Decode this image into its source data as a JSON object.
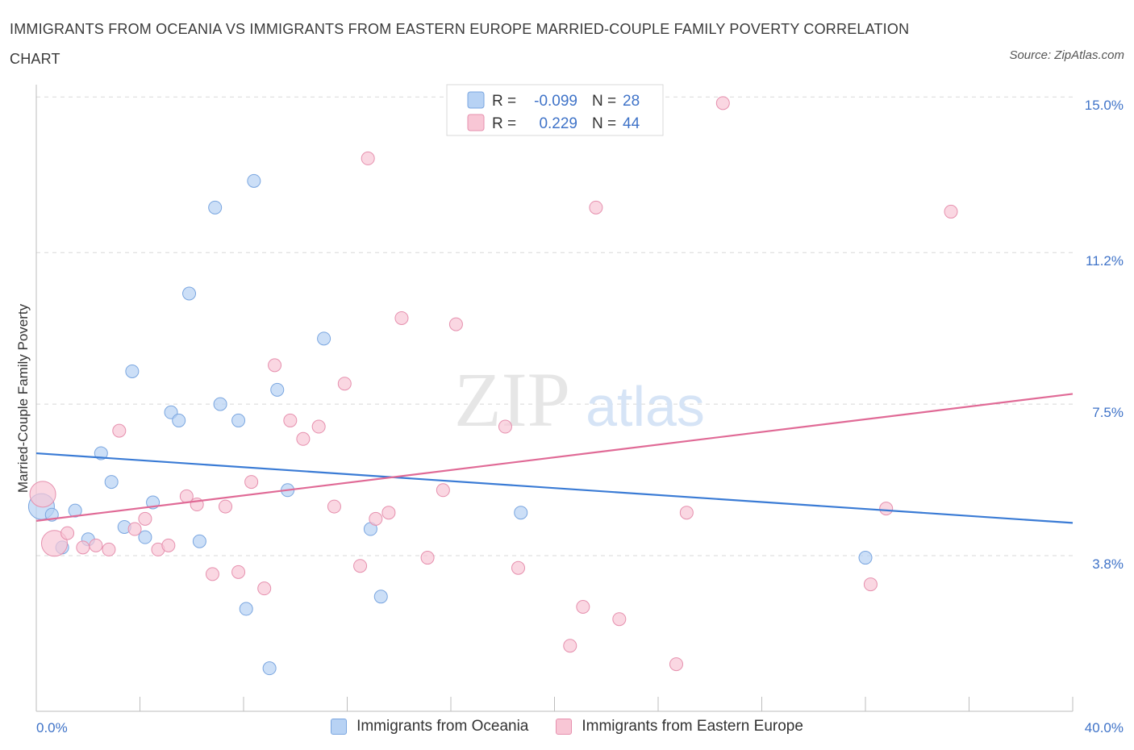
{
  "title": "IMMIGRANTS FROM OCEANIA VS IMMIGRANTS FROM EASTERN EUROPE MARRIED-COUPLE FAMILY POVERTY CORRELATION CHART",
  "source": "Source: ZipAtlas.com",
  "watermark": {
    "zip": "ZIP",
    "atlas": "atlas"
  },
  "colors": {
    "blue_fill": "#b7d2f4",
    "blue_stroke": "#7aa6e0",
    "blue_line": "#3a7bd5",
    "pink_fill": "#f8c6d5",
    "pink_stroke": "#e690ae",
    "pink_line": "#e06a96",
    "tick_text": "#3f73c8",
    "grid": "#d8d8d8"
  },
  "legend": {
    "rows": [
      {
        "r_label": "R =",
        "r_value": "-0.099",
        "n_label": "N =",
        "n_value": "28"
      },
      {
        "r_label": "R =",
        "r_value": "0.229",
        "n_label": "N =",
        "n_value": "44"
      }
    ]
  },
  "chart_data": {
    "type": "scatter",
    "title": "IMMIGRANTS FROM OCEANIA VS IMMIGRANTS FROM EASTERN EUROPE MARRIED-COUPLE FAMILY POVERTY CORRELATION CHART",
    "xlabel": "",
    "ylabel": "Married-Couple Family Poverty",
    "xlim": [
      0,
      40
    ],
    "ylim": [
      0,
      15.3
    ],
    "x_tick_labels": [
      {
        "value": 0,
        "label": "0.0%"
      },
      {
        "value": 40,
        "label": "40.0%"
      }
    ],
    "y_ticks": [
      {
        "value": 3.8,
        "label": "3.8%"
      },
      {
        "value": 7.5,
        "label": "7.5%"
      },
      {
        "value": 11.2,
        "label": "11.2%"
      },
      {
        "value": 15.0,
        "label": "15.0%"
      }
    ],
    "series": [
      {
        "name": "Immigrants from Oceania",
        "R": -0.099,
        "N": 28,
        "trend": {
          "x": [
            0,
            40
          ],
          "y": [
            6.3,
            4.6
          ]
        },
        "points": [
          {
            "x": 0.2,
            "y": 5.0,
            "big": true
          },
          {
            "x": 0.6,
            "y": 4.8
          },
          {
            "x": 1.0,
            "y": 4.0
          },
          {
            "x": 1.5,
            "y": 4.9
          },
          {
            "x": 2.0,
            "y": 4.2
          },
          {
            "x": 2.5,
            "y": 6.3
          },
          {
            "x": 2.9,
            "y": 5.6
          },
          {
            "x": 3.4,
            "y": 4.5
          },
          {
            "x": 3.7,
            "y": 8.3
          },
          {
            "x": 4.2,
            "y": 4.25
          },
          {
            "x": 4.5,
            "y": 5.1
          },
          {
            "x": 5.2,
            "y": 7.3
          },
          {
            "x": 5.5,
            "y": 7.1
          },
          {
            "x": 5.9,
            "y": 10.2
          },
          {
            "x": 6.3,
            "y": 4.15
          },
          {
            "x": 6.9,
            "y": 12.3
          },
          {
            "x": 7.1,
            "y": 7.5
          },
          {
            "x": 7.8,
            "y": 7.1
          },
          {
            "x": 8.1,
            "y": 2.5
          },
          {
            "x": 8.4,
            "y": 12.95
          },
          {
            "x": 9.0,
            "y": 1.05
          },
          {
            "x": 9.3,
            "y": 7.85
          },
          {
            "x": 9.7,
            "y": 5.4
          },
          {
            "x": 11.1,
            "y": 9.1
          },
          {
            "x": 12.9,
            "y": 4.45
          },
          {
            "x": 13.3,
            "y": 2.8
          },
          {
            "x": 18.7,
            "y": 4.85
          },
          {
            "x": 32.0,
            "y": 3.75
          }
        ]
      },
      {
        "name": "Immigrants from Eastern Europe",
        "R": 0.229,
        "N": 44,
        "trend": {
          "x": [
            0,
            40
          ],
          "y": [
            4.65,
            7.75
          ]
        },
        "points": [
          {
            "x": 0.25,
            "y": 5.3,
            "big": true
          },
          {
            "x": 0.7,
            "y": 4.1,
            "big": true
          },
          {
            "x": 1.2,
            "y": 4.35
          },
          {
            "x": 1.8,
            "y": 4.0
          },
          {
            "x": 2.3,
            "y": 4.05
          },
          {
            "x": 2.8,
            "y": 3.95
          },
          {
            "x": 3.2,
            "y": 6.85
          },
          {
            "x": 3.8,
            "y": 4.45
          },
          {
            "x": 4.2,
            "y": 4.7
          },
          {
            "x": 4.7,
            "y": 3.95
          },
          {
            "x": 5.1,
            "y": 4.05
          },
          {
            "x": 5.8,
            "y": 5.25
          },
          {
            "x": 6.2,
            "y": 5.05
          },
          {
            "x": 6.8,
            "y": 3.35
          },
          {
            "x": 7.3,
            "y": 5.0
          },
          {
            "x": 7.8,
            "y": 3.4
          },
          {
            "x": 8.3,
            "y": 5.6
          },
          {
            "x": 8.8,
            "y": 3.0
          },
          {
            "x": 9.2,
            "y": 8.45
          },
          {
            "x": 9.8,
            "y": 7.1
          },
          {
            "x": 10.3,
            "y": 6.65
          },
          {
            "x": 10.9,
            "y": 6.95
          },
          {
            "x": 11.5,
            "y": 5.0
          },
          {
            "x": 11.9,
            "y": 8.0
          },
          {
            "x": 12.5,
            "y": 3.55
          },
          {
            "x": 12.8,
            "y": 13.5
          },
          {
            "x": 13.1,
            "y": 4.7
          },
          {
            "x": 13.6,
            "y": 4.85
          },
          {
            "x": 14.1,
            "y": 9.6
          },
          {
            "x": 15.1,
            "y": 3.75
          },
          {
            "x": 15.7,
            "y": 5.4
          },
          {
            "x": 16.2,
            "y": 9.45
          },
          {
            "x": 18.1,
            "y": 6.95
          },
          {
            "x": 18.6,
            "y": 3.5
          },
          {
            "x": 20.6,
            "y": 1.6
          },
          {
            "x": 21.1,
            "y": 2.55
          },
          {
            "x": 21.6,
            "y": 12.3
          },
          {
            "x": 22.5,
            "y": 2.25
          },
          {
            "x": 24.7,
            "y": 1.15
          },
          {
            "x": 25.1,
            "y": 4.85
          },
          {
            "x": 26.5,
            "y": 14.85
          },
          {
            "x": 32.2,
            "y": 3.1
          },
          {
            "x": 32.8,
            "y": 4.95
          },
          {
            "x": 35.3,
            "y": 12.2
          }
        ]
      }
    ]
  }
}
